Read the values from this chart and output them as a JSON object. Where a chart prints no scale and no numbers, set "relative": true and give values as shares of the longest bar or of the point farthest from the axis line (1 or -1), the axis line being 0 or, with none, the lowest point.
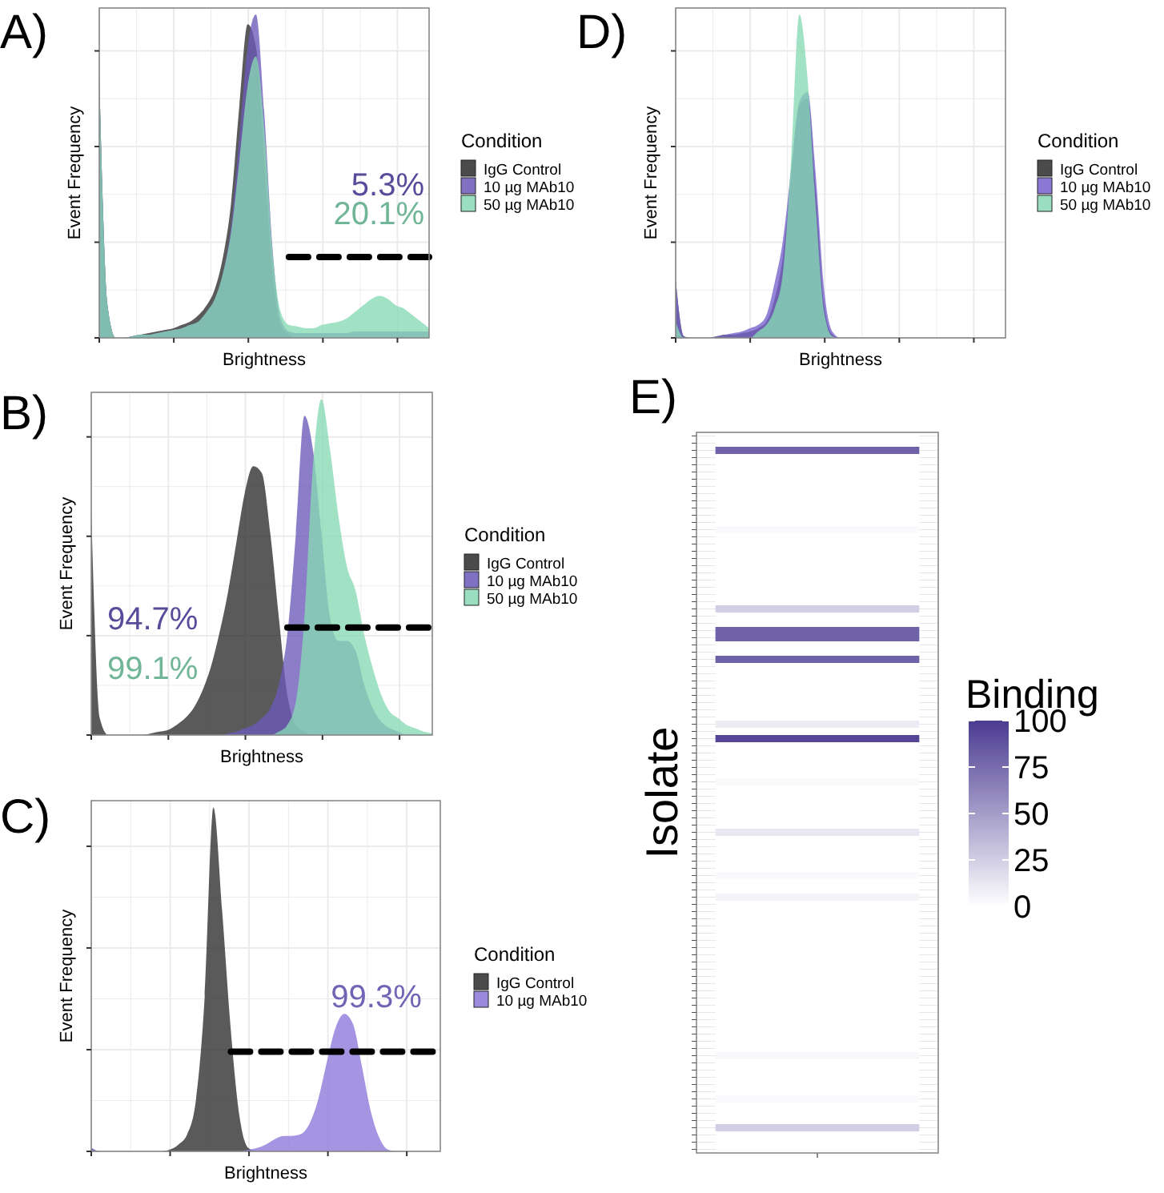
{
  "chart_data": [
    {
      "type": "area",
      "title": "A)",
      "xlabel": "Brightness",
      "ylabel": "Event Frequency",
      "legend_title": "Condition",
      "legend": "right",
      "relative": true,
      "grid": true,
      "categories": [
        null,
        null,
        null,
        null,
        null,
        null,
        null,
        null,
        null,
        null,
        null,
        null,
        null,
        null,
        null,
        null,
        null,
        null,
        null,
        null,
        null,
        null,
        null,
        null,
        null,
        null,
        null,
        null,
        null,
        null,
        null,
        null,
        null,
        null,
        null,
        null,
        null,
        null,
        null,
        null,
        null
      ],
      "series": [
        {
          "name": "IgG Control",
          "color": "#2b2b2b",
          "values": [
            0.81,
            0.1,
            0,
            0,
            0.005,
            0.01,
            0.015,
            0.02,
            0.025,
            0.03,
            0.04,
            0.05,
            0.07,
            0.1,
            0.15,
            0.25,
            0.42,
            0.72,
            0.97,
            0.9,
            0.55,
            0.2,
            0.04,
            0.01,
            0,
            0,
            0,
            0,
            0,
            0,
            0,
            0,
            0,
            0,
            0,
            0,
            0,
            0,
            0,
            0,
            0
          ]
        },
        {
          "name": "10 µg MAb10",
          "color": "#6b58b8",
          "values": [
            0.81,
            0.1,
            0,
            0,
            0.005,
            0.01,
            0.01,
            0.015,
            0.02,
            0.025,
            0.03,
            0.04,
            0.05,
            0.08,
            0.12,
            0.2,
            0.35,
            0.62,
            0.9,
            1,
            0.7,
            0.28,
            0.06,
            0.02,
            0.015,
            0.015,
            0.015,
            0.015,
            0.015,
            0.015,
            0.015,
            0.02,
            0.02,
            0.02,
            0.02,
            0.02,
            0.02,
            0.02,
            0.02,
            0.02,
            0.02
          ]
        },
        {
          "name": "50 µg MAb10",
          "color": "#86d8b4",
          "values": [
            0.81,
            0.1,
            0,
            0,
            0.005,
            0.01,
            0.01,
            0.015,
            0.02,
            0.025,
            0.03,
            0.04,
            0.05,
            0.08,
            0.12,
            0.2,
            0.33,
            0.55,
            0.78,
            0.87,
            0.65,
            0.27,
            0.08,
            0.04,
            0.035,
            0.03,
            0.03,
            0.04,
            0.045,
            0.05,
            0.06,
            0.08,
            0.1,
            0.12,
            0.13,
            0.12,
            0.1,
            0.09,
            0.07,
            0.05,
            0.03
          ]
        },
        {
          "type": "line",
          "color": "#000000",
          "line_style": "dashed",
          "values": [
            null,
            null,
            null,
            null,
            null,
            null,
            null,
            null,
            null,
            null,
            null,
            null,
            null,
            null,
            null,
            null,
            null,
            null,
            null,
            null,
            null,
            null,
            null,
            0.25,
            0.25,
            0.25,
            0.25,
            0.25,
            0.25,
            0.25,
            0.25,
            0.25,
            0.25,
            0.25,
            0.25,
            0.25,
            0.25,
            0.25,
            0.25,
            0.25,
            0.25
          ]
        }
      ],
      "annotations": [
        "5.3%",
        "20.1%"
      ]
    },
    {
      "type": "area",
      "title": "B)",
      "xlabel": "Brightness",
      "ylabel": "Event Frequency",
      "legend_title": "Condition",
      "legend": "right",
      "relative": true,
      "grid": true,
      "categories": [
        null,
        null,
        null,
        null,
        null,
        null,
        null,
        null,
        null,
        null,
        null,
        null,
        null,
        null,
        null,
        null,
        null,
        null,
        null,
        null,
        null,
        null,
        null,
        null,
        null,
        null,
        null,
        null,
        null,
        null,
        null,
        null,
        null,
        null,
        null,
        null,
        null,
        null,
        null,
        null,
        null
      ],
      "series": [
        {
          "name": "IgG Control",
          "color": "#2b2b2b",
          "values": [
            0.67,
            0.05,
            0,
            0,
            0,
            0,
            0,
            0.005,
            0.01,
            0.015,
            0.03,
            0.05,
            0.08,
            0.13,
            0.2,
            0.3,
            0.42,
            0.57,
            0.72,
            0.8,
            0.78,
            0.6,
            0.35,
            0.12,
            0.03,
            0.01,
            0,
            0,
            0,
            0,
            0,
            0,
            0,
            0,
            0,
            0,
            0,
            0,
            0,
            0,
            0
          ]
        },
        {
          "name": "10 µg MAb10",
          "color": "#6b58b8",
          "values": [
            0,
            0,
            0,
            0,
            0,
            0,
            0,
            0,
            0,
            0,
            0,
            0,
            0,
            0,
            0,
            0,
            0.005,
            0.01,
            0.02,
            0.03,
            0.05,
            0.08,
            0.15,
            0.3,
            0.6,
            0.95,
            0.85,
            0.6,
            0.35,
            0.28,
            0.28,
            0.25,
            0.15,
            0.08,
            0.04,
            0.02,
            0.01,
            0,
            0,
            0,
            0
          ]
        },
        {
          "name": "50 µg MAb10",
          "color": "#86d8b4",
          "values": [
            0,
            0,
            0,
            0,
            0,
            0,
            0,
            0,
            0,
            0,
            0,
            0,
            0,
            0,
            0,
            0,
            0,
            0,
            0,
            0,
            0,
            0,
            0.01,
            0.03,
            0.1,
            0.35,
            0.8,
            1,
            0.85,
            0.65,
            0.5,
            0.43,
            0.3,
            0.2,
            0.12,
            0.07,
            0.05,
            0.03,
            0.02,
            0.01,
            0.005
          ]
        },
        {
          "type": "line",
          "color": "#000000",
          "line_style": "dashed",
          "values": [
            null,
            null,
            null,
            null,
            null,
            null,
            null,
            null,
            null,
            null,
            null,
            null,
            null,
            null,
            null,
            null,
            null,
            null,
            null,
            null,
            null,
            null,
            null,
            0.32,
            0.32,
            0.32,
            0.32,
            0.32,
            0.32,
            0.32,
            0.32,
            0.32,
            0.32,
            0.32,
            0.32,
            0.32,
            0.32,
            0.32,
            0.32,
            0.32,
            0.32
          ]
        }
      ],
      "annotations": [
        "94.7%",
        "99.1%"
      ]
    },
    {
      "type": "area",
      "title": "C)",
      "xlabel": "Brightness",
      "ylabel": "Event Frequency",
      "legend_title": "Condition",
      "legend": "right",
      "relative": true,
      "grid": true,
      "categories": [
        null,
        null,
        null,
        null,
        null,
        null,
        null,
        null,
        null,
        null,
        null,
        null,
        null,
        null,
        null,
        null,
        null,
        null,
        null,
        null,
        null,
        null,
        null,
        null,
        null,
        null,
        null,
        null,
        null,
        null,
        null,
        null,
        null,
        null,
        null,
        null,
        null,
        null,
        null,
        null,
        null
      ],
      "series": [
        {
          "name": "IgG Control",
          "color": "#2b2b2b",
          "values": [
            0.01,
            0,
            0,
            0,
            0,
            0,
            0,
            0,
            0,
            0.005,
            0.02,
            0.05,
            0.15,
            0.45,
            1,
            0.7,
            0.35,
            0.1,
            0.01,
            0,
            0,
            0,
            0,
            0,
            0,
            0,
            0,
            0,
            0,
            0,
            0,
            0,
            0,
            0,
            0,
            0,
            0,
            0,
            0,
            0,
            0
          ]
        },
        {
          "name": "10 µg MAb10",
          "color": "#8a76d8",
          "values": [
            0.01,
            0,
            0,
            0,
            0,
            0,
            0,
            0,
            0,
            0,
            0,
            0,
            0,
            0,
            0,
            0,
            0,
            0,
            0.005,
            0.01,
            0.02,
            0.035,
            0.045,
            0.045,
            0.05,
            0.08,
            0.15,
            0.26,
            0.36,
            0.4,
            0.37,
            0.25,
            0.12,
            0.04,
            0.005,
            0,
            0,
            0,
            0,
            0,
            0
          ]
        },
        {
          "type": "line",
          "color": "#000000",
          "line_style": "dashed",
          "values": [
            null,
            null,
            null,
            null,
            null,
            null,
            null,
            null,
            null,
            null,
            null,
            null,
            null,
            null,
            null,
            null,
            0.29,
            0.29,
            0.29,
            0.29,
            0.29,
            0.29,
            0.29,
            0.29,
            0.29,
            0.29,
            0.29,
            0.29,
            0.29,
            0.29,
            0.29,
            0.29,
            0.29,
            0.29,
            0.29,
            0.29,
            0.29,
            0.29,
            0.29,
            0.29,
            0.29
          ]
        }
      ],
      "annotations": [
        "99.3%"
      ]
    },
    {
      "type": "area",
      "title": "D)",
      "xlabel": "Brightness",
      "ylabel": "Event Frequency",
      "legend_title": "Condition",
      "legend": "right",
      "relative": true,
      "grid": true,
      "categories": [
        null,
        null,
        null,
        null,
        null,
        null,
        null,
        null,
        null,
        null,
        null,
        null,
        null,
        null,
        null,
        null,
        null,
        null,
        null,
        null,
        null,
        null,
        null,
        null,
        null,
        null,
        null,
        null,
        null,
        null,
        null,
        null,
        null,
        null,
        null,
        null,
        null,
        null,
        null,
        null,
        null
      ],
      "series": [
        {
          "name": "IgG Control",
          "color": "#2b2b2b",
          "values": [
            0.18,
            0.005,
            0,
            0,
            0,
            0.005,
            0.01,
            0.01,
            0.015,
            0.02,
            0.03,
            0.05,
            0.12,
            0.25,
            0.5,
            0.72,
            0.74,
            0.45,
            0.1,
            0.01,
            0,
            0,
            0,
            0,
            0,
            0,
            0,
            0,
            0,
            0,
            0,
            0,
            0,
            0,
            0,
            0,
            0,
            0,
            0,
            0,
            0
          ]
        },
        {
          "name": "10 µg MAb10",
          "color": "#7662cc",
          "values": [
            0.18,
            0.005,
            0,
            0,
            0,
            0.005,
            0.01,
            0.015,
            0.02,
            0.03,
            0.04,
            0.07,
            0.17,
            0.3,
            0.52,
            0.73,
            0.76,
            0.5,
            0.15,
            0.02,
            0,
            0,
            0,
            0,
            0,
            0,
            0,
            0,
            0,
            0,
            0,
            0,
            0,
            0,
            0,
            0,
            0,
            0,
            0,
            0,
            0
          ]
        },
        {
          "name": "50 µg MAb10",
          "color": "#86d8b4",
          "values": [
            0.05,
            0,
            0,
            0,
            0,
            0,
            0,
            0,
            0,
            0,
            0.02,
            0.04,
            0.09,
            0.2,
            0.55,
            1,
            0.8,
            0.4,
            0.08,
            0.005,
            0,
            0,
            0,
            0,
            0,
            0,
            0,
            0,
            0,
            0,
            0,
            0,
            0,
            0,
            0,
            0,
            0,
            0,
            0,
            0,
            0
          ]
        }
      ]
    },
    {
      "type": "heatmap",
      "title": "E)",
      "ylabel": "Isolate",
      "clabel": "Binding",
      "clim": [
        0,
        100
      ],
      "cticks": [
        0,
        25,
        50,
        75,
        100
      ],
      "grid": true,
      "categories": [
        null
      ],
      "y_categories": [
        null,
        null,
        null,
        null,
        null,
        null,
        null,
        null,
        null,
        null,
        null,
        null,
        null,
        null,
        null,
        null,
        null,
        null,
        null,
        null,
        null,
        null,
        null,
        null,
        null,
        null,
        null,
        null,
        null,
        null,
        null,
        null,
        null,
        null,
        null,
        null,
        null,
        null,
        null,
        null,
        null,
        null,
        null,
        null,
        null,
        null,
        null,
        null,
        null,
        null,
        null,
        null,
        null,
        null,
        null,
        null,
        null,
        null,
        null,
        null,
        null,
        null,
        null,
        null,
        null,
        null,
        null,
        null,
        null,
        null,
        null,
        null,
        null,
        null,
        null,
        null,
        null,
        null,
        null,
        null,
        null,
        null,
        null,
        null,
        null,
        null,
        null,
        null,
        null,
        null,
        null,
        null,
        null,
        null,
        null,
        null,
        null,
        null,
        null,
        null
      ],
      "cells": [
        [
          0
        ],
        [
          0
        ],
        [
          80
        ],
        [
          0
        ],
        [
          0
        ],
        [
          0
        ],
        [
          0
        ],
        [
          0
        ],
        [
          0
        ],
        [
          0
        ],
        [
          0
        ],
        [
          0
        ],
        [
          0
        ],
        [
          3
        ],
        [
          0
        ],
        [
          0
        ],
        [
          0
        ],
        [
          0
        ],
        [
          0
        ],
        [
          0
        ],
        [
          0
        ],
        [
          0
        ],
        [
          0
        ],
        [
          0
        ],
        [
          25
        ],
        [
          0
        ],
        [
          0
        ],
        [
          80
        ],
        [
          80
        ],
        [
          0
        ],
        [
          0
        ],
        [
          80
        ],
        [
          0
        ],
        [
          0
        ],
        [
          0
        ],
        [
          0
        ],
        [
          0
        ],
        [
          0
        ],
        [
          0
        ],
        [
          0
        ],
        [
          10
        ],
        [
          0
        ],
        [
          95
        ],
        [
          0
        ],
        [
          0
        ],
        [
          0
        ],
        [
          0
        ],
        [
          0
        ],
        [
          3
        ],
        [
          0
        ],
        [
          0
        ],
        [
          0
        ],
        [
          0
        ],
        [
          0
        ],
        [
          0
        ],
        [
          12
        ],
        [
          0
        ],
        [
          0
        ],
        [
          0
        ],
        [
          0
        ],
        [
          0
        ],
        [
          3
        ],
        [
          0
        ],
        [
          0
        ],
        [
          6
        ],
        [
          0
        ],
        [
          0
        ],
        [
          0
        ],
        [
          0
        ],
        [
          0
        ],
        [
          0
        ],
        [
          0
        ],
        [
          0
        ],
        [
          0
        ],
        [
          0
        ],
        [
          0
        ],
        [
          0
        ],
        [
          0
        ],
        [
          0
        ],
        [
          0
        ],
        [
          0
        ],
        [
          0
        ],
        [
          0
        ],
        [
          0
        ],
        [
          0
        ],
        [
          0
        ],
        [
          4
        ],
        [
          0
        ],
        [
          0
        ],
        [
          0
        ],
        [
          0
        ],
        [
          0
        ],
        [
          3
        ],
        [
          0
        ],
        [
          0
        ],
        [
          0
        ],
        [
          25
        ],
        [
          0
        ],
        [
          0
        ],
        [
          0
        ]
      ]
    }
  ]
}
